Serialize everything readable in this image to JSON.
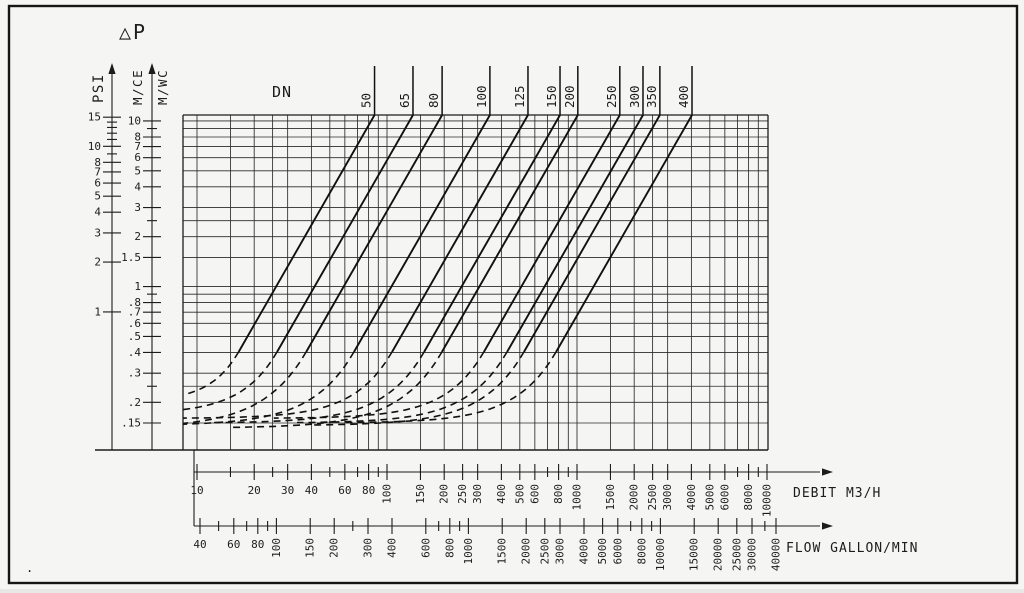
{
  "labels": {
    "title": "△P",
    "psi": "PSI",
    "mce": "M/CE",
    "mwc": "M/WC",
    "dn_header": "DN",
    "debit_axis": "DEBIT  M3/H",
    "flow_axis": "FLOW GALLON/MIN",
    "artifact_dot": "."
  },
  "colors": {
    "ink": "#1c1c1c",
    "grid": "#2b2b2b",
    "paper": "#f5f5f3"
  },
  "chart_data": {
    "type": "line",
    "title": "△P pressure drop versus flow, one curve per valve size DN",
    "legend_position": "top-callouts",
    "grid": "log-log on",
    "x_axis_primary": {
      "label": "DEBIT  M3/H",
      "scale": "log",
      "min": 10,
      "max": 10000,
      "labeled_ticks": [
        10,
        20,
        30,
        40,
        60,
        80,
        100,
        150,
        200,
        250,
        300,
        400,
        500,
        600,
        800,
        1000,
        1500,
        2000,
        2500,
        3000,
        4000,
        5000,
        6000,
        8000,
        10000
      ],
      "minor_ticks": [
        15,
        25,
        50,
        70,
        90,
        700,
        900,
        7000,
        9000
      ]
    },
    "x_axis_secondary": {
      "label": "FLOW GALLON/MIN",
      "scale": "log",
      "min": 40,
      "max": 40000,
      "labeled_ticks": [
        40,
        60,
        80,
        100,
        150,
        200,
        300,
        400,
        600,
        800,
        1000,
        1500,
        2000,
        2500,
        3000,
        4000,
        5000,
        6000,
        8000,
        10000,
        15000,
        20000,
        25000,
        30000,
        40000
      ],
      "minor_ticks": [
        50,
        70,
        90,
        250,
        700,
        900,
        7000,
        9000,
        35000
      ]
    },
    "y_axis_primary": {
      "label": "M/CE M/WC (meters water column)",
      "scale": "log",
      "min": 0.15,
      "max": 10.9,
      "labeled_ticks": [
        10,
        8,
        7,
        6,
        5,
        4,
        3,
        2,
        1.5,
        1,
        0.8,
        0.7,
        0.6,
        0.5,
        0.4,
        0.3,
        0.2,
        0.15
      ],
      "minor_ticks": [
        9,
        2.5,
        0.9,
        0.25
      ]
    },
    "y_axis_secondary": {
      "label": "PSI",
      "scale": "log",
      "labeled_ticks": [
        15,
        10,
        8,
        7,
        6,
        5,
        4,
        3,
        2,
        1
      ],
      "minor_ticks": [
        9,
        11,
        12,
        13,
        14
      ],
      "psi_to_mwc_factor": 0.703
    },
    "x_grid_mantissas": [
      1,
      1.5,
      2,
      2.5,
      3,
      4,
      5,
      6,
      7,
      8,
      9
    ],
    "y_grid_values": [
      0.15,
      0.2,
      0.25,
      0.3,
      0.4,
      0.5,
      0.6,
      0.7,
      0.8,
      0.9,
      1,
      1.5,
      2,
      2.5,
      3,
      4,
      5,
      6,
      7,
      8,
      9,
      10
    ],
    "series_group_label": "DN",
    "series_model": "dp_mwc = dp_min + k*Q^2 ; k fixed by q_m3h at chart top (dp = 10.9 m/wc); low-flow branch dashed, flattening to dp_min",
    "series": [
      {
        "dn": "50",
        "q_m3h_at_chart_top": 86,
        "dp_min_mwc": 0.2
      },
      {
        "dn": "65",
        "q_m3h_at_chart_top": 137,
        "dp_min_mwc": 0.17
      },
      {
        "dn": "80",
        "q_m3h_at_chart_top": 195,
        "dp_min_mwc": 0.14
      },
      {
        "dn": "100",
        "q_m3h_at_chart_top": 348,
        "dp_min_mwc": 0.145
      },
      {
        "dn": "125",
        "q_m3h_at_chart_top": 552,
        "dp_min_mwc": 0.16
      },
      {
        "dn": "150",
        "q_m3h_at_chart_top": 814,
        "dp_min_mwc": 0.15
      },
      {
        "dn": "200",
        "q_m3h_at_chart_top": 1010,
        "dp_min_mwc": 0.14
      },
      {
        "dn": "250",
        "q_m3h_at_chart_top": 1680,
        "dp_min_mwc": 0.16
      },
      {
        "dn": "300",
        "q_m3h_at_chart_top": 2225,
        "dp_min_mwc": 0.15
      },
      {
        "dn": "350",
        "q_m3h_at_chart_top": 2730,
        "dp_min_mwc": 0.145
      },
      {
        "dn": "400",
        "q_m3h_at_chart_top": 4030,
        "dp_min_mwc": 0.15
      }
    ]
  }
}
